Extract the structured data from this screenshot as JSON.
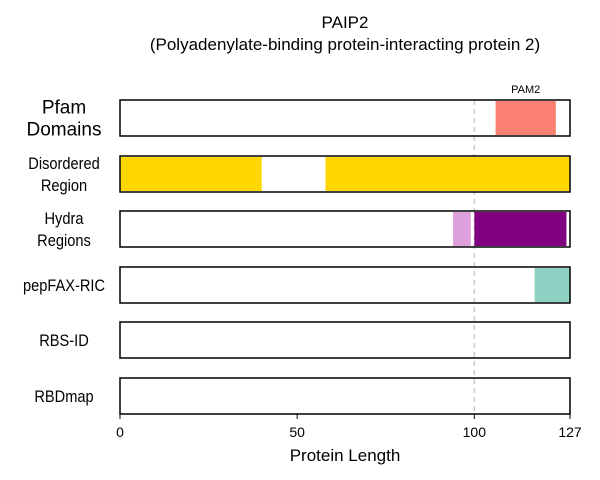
{
  "chart_data": {
    "type": "bar",
    "subtype": "protein-feature-track",
    "title": "PAIP2",
    "subtitle": "(Polyadenylate-binding protein-interacting protein 2)",
    "xlabel": "Protein Length",
    "xlim": [
      0,
      127
    ],
    "xticks": [
      0,
      50,
      100,
      127
    ],
    "reference_line": {
      "x": 100,
      "style": "dashed",
      "color": "#cccccc"
    },
    "tracks": [
      {
        "label": [
          "Pfam",
          "Domains"
        ],
        "segments": [
          {
            "start": 106,
            "end": 123,
            "color": "#fa8072",
            "label": "PAM2"
          }
        ]
      },
      {
        "label": [
          "Disordered",
          "Region"
        ],
        "segments": [
          {
            "start": 0,
            "end": 40,
            "color": "#ffd700"
          },
          {
            "start": 58,
            "end": 127,
            "color": "#ffd700"
          }
        ]
      },
      {
        "label": [
          "Hydra",
          "Regions"
        ],
        "segments": [
          {
            "start": 94,
            "end": 99,
            "color": "#dda0dd"
          },
          {
            "start": 100,
            "end": 126,
            "color": "#800080"
          }
        ]
      },
      {
        "label": [
          "pepFAX-RIC"
        ],
        "segments": [
          {
            "start": 117,
            "end": 127,
            "color": "#8fd1c2"
          }
        ]
      },
      {
        "label": [
          "RBS-ID"
        ],
        "segments": []
      },
      {
        "label": [
          "RBDmap"
        ],
        "segments": []
      }
    ]
  }
}
